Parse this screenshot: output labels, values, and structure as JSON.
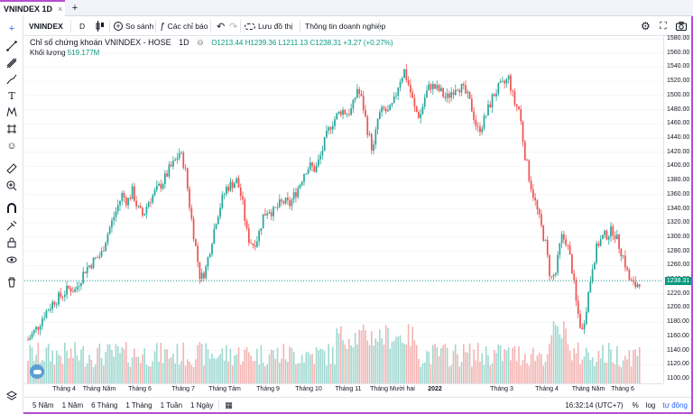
{
  "tab": {
    "title": "VNINDEX 1D",
    "close": "×",
    "new": "+"
  },
  "toolbar": {
    "symbol": "VNINDEX",
    "interval": "D",
    "compare": "So sánh",
    "indicators": "Các chỉ báo",
    "save": "Lưu đồ thị",
    "company_info": "Thông tin doanh nghiệp"
  },
  "legend": {
    "name": "Chỉ số chứng khoán VNINDEX - HOSE",
    "interval": "1D",
    "ohlc": "O1213.44 H1239.36 L1211.13 C1238.31 +3.27 (+0.27%)",
    "volume_label": "Khối lượng",
    "volume_value": "519.177M"
  },
  "last_price": "1238.31",
  "y_axis_labels": [
    "1580.00",
    "1560.00",
    "1540.00",
    "1520.00",
    "1500.00",
    "1480.00",
    "1460.00",
    "1440.00",
    "1420.00",
    "1400.00",
    "1380.00",
    "1360.00",
    "1340.00",
    "1320.00",
    "1300.00",
    "1280.00",
    "1260.00",
    "1240.00",
    "1220.00",
    "1200.00",
    "1180.00",
    "1160.00",
    "1140.00",
    "1120.00",
    "1100.00"
  ],
  "x_axis_labels": [
    "Tháng 4",
    "Tháng Năm",
    "Tháng 6",
    "Tháng 7",
    "Tháng Tám",
    "Tháng 9",
    "Tháng 10",
    "Tháng 11",
    "Tháng Mười hai",
    "2022",
    "Tháng 3",
    "Tháng 4",
    "Tháng Năm",
    "Tháng 6"
  ],
  "ranges": [
    "5 Năm",
    "1 Năm",
    "6 Tháng",
    "1 Tháng",
    "1 Tuần",
    "1 Ngày"
  ],
  "bottom_right": {
    "time": "16:32:14 (UTC+7)",
    "percent": "%",
    "log": "log",
    "auto": "tự động"
  },
  "colors": {
    "up": "#26a69a",
    "down": "#ef5350",
    "accent": "#b44fd0",
    "vol_up": "#9fd8d0",
    "vol_down": "#f4b3b1"
  },
  "chart_data": {
    "type": "candlestick",
    "ylim": [
      1100,
      1580
    ],
    "price_path": [
      1155,
      1165,
      1175,
      1190,
      1200,
      1210,
      1215,
      1222,
      1228,
      1225,
      1240,
      1255,
      1262,
      1270,
      1275,
      1300,
      1320,
      1340,
      1360,
      1350,
      1365,
      1340,
      1330,
      1350,
      1360,
      1370,
      1380,
      1395,
      1405,
      1420,
      1400,
      1340,
      1290,
      1240,
      1255,
      1290,
      1325,
      1350,
      1370,
      1375,
      1380,
      1350,
      1300,
      1290,
      1300,
      1330,
      1340,
      1335,
      1345,
      1350,
      1345,
      1360,
      1375,
      1395,
      1400,
      1395,
      1415,
      1440,
      1460,
      1470,
      1480,
      1475,
      1480,
      1510,
      1490,
      1450,
      1420,
      1470,
      1480,
      1475,
      1490,
      1520,
      1535,
      1510,
      1480,
      1470,
      1500,
      1515,
      1510,
      1505,
      1495,
      1505,
      1515,
      1510,
      1500,
      1480,
      1450,
      1460,
      1480,
      1500,
      1510,
      1515,
      1525,
      1490,
      1480,
      1420,
      1380,
      1350,
      1320,
      1290,
      1240,
      1250,
      1300,
      1295,
      1260,
      1200,
      1165,
      1210,
      1260,
      1290,
      1300,
      1305,
      1310,
      1290,
      1270,
      1240,
      1230,
      1238
    ]
  }
}
